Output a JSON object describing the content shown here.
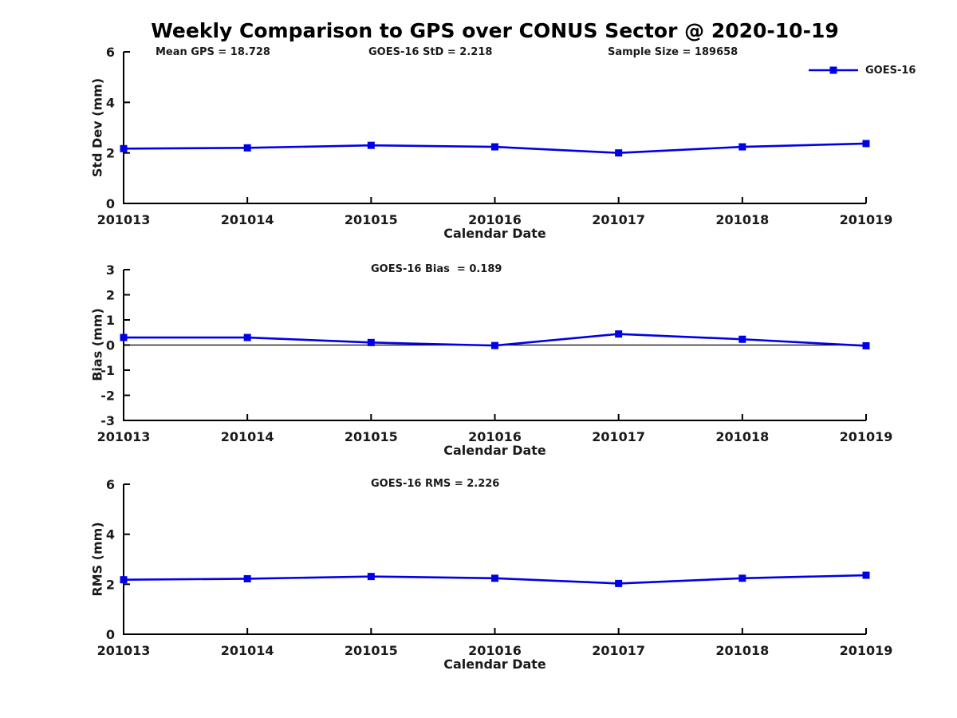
{
  "figure": {
    "title": "Weekly Comparison to GPS over CONUS Sector @ 2020-10-19"
  },
  "legend": {
    "label": "GOES-16",
    "marker": "filled-square",
    "color": "#0000e8"
  },
  "colors": {
    "series_line": "#0000e8",
    "axis": "#000000",
    "text": "#1a1a1a",
    "background": "#ffffff"
  },
  "chart_data": [
    {
      "type": "line",
      "name": "std-dev-vs-calendar-date",
      "annotations": [
        "Mean GPS = 18.728",
        "GOES-16 StD = 2.218",
        "Sample Size = 189658"
      ],
      "xlabel": "Calendar Date",
      "ylabel": "Std Dev (mm)",
      "ylim": [
        0,
        6
      ],
      "yticks": [
        0,
        2,
        4,
        6
      ],
      "categories": [
        "201013",
        "201014",
        "201015",
        "201016",
        "201017",
        "201018",
        "201019"
      ],
      "series": [
        {
          "name": "GOES-16",
          "values": [
            2.17,
            2.2,
            2.3,
            2.24,
            2.0,
            2.24,
            2.37
          ]
        }
      ],
      "marker": "square",
      "grid": false,
      "legend_position": "upper-right-outside",
      "zero_line": false
    },
    {
      "type": "line",
      "name": "bias-vs-calendar-date",
      "annotations": [
        "GOES-16 Bias  = 0.189"
      ],
      "xlabel": "Calendar Date",
      "ylabel": "Bias (mm)",
      "ylim": [
        -3,
        3
      ],
      "yticks": [
        3,
        2,
        1,
        0,
        -1,
        -2,
        -3
      ],
      "categories": [
        "201013",
        "201014",
        "201015",
        "201016",
        "201017",
        "201018",
        "201019"
      ],
      "series": [
        {
          "name": "GOES-16",
          "values": [
            0.3,
            0.3,
            0.1,
            -0.02,
            0.44,
            0.23,
            -0.03
          ]
        }
      ],
      "marker": "square",
      "grid": false,
      "legend_position": "none",
      "zero_line": true
    },
    {
      "type": "line",
      "name": "rms-vs-calendar-date",
      "annotations": [
        "GOES-16 RMS = 2.226"
      ],
      "xlabel": "Calendar Date",
      "ylabel": "RMS (mm)",
      "ylim": [
        0,
        6
      ],
      "yticks": [
        0,
        2,
        4,
        6
      ],
      "categories": [
        "201013",
        "201014",
        "201015",
        "201016",
        "201017",
        "201018",
        "201019"
      ],
      "series": [
        {
          "name": "GOES-16",
          "values": [
            2.18,
            2.22,
            2.31,
            2.24,
            2.03,
            2.24,
            2.36
          ]
        }
      ],
      "marker": "square",
      "grid": false,
      "legend_position": "none",
      "zero_line": false
    }
  ]
}
